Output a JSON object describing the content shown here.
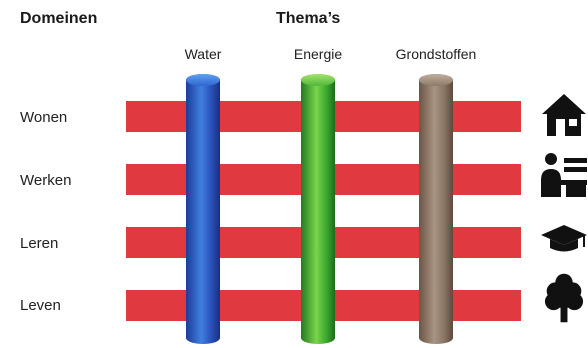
{
  "header": {
    "domains": "Domeinen",
    "themes": "Thema’s"
  },
  "themes": [
    {
      "label": "Water",
      "color": "#2f56c0"
    },
    {
      "label": "Energie",
      "color": "#3aa82f"
    },
    {
      "label": "Grondstoffen",
      "color": "#8a7462"
    }
  ],
  "domains": [
    {
      "label": "Wonen",
      "icon": "house-icon"
    },
    {
      "label": "Werken",
      "icon": "worker-desk-icon"
    },
    {
      "label": "Leren",
      "icon": "graduation-cap-icon"
    },
    {
      "label": "Leven",
      "icon": "tree-icon"
    }
  ],
  "colors": {
    "bar": "#e0393f",
    "icon": "#111111"
  }
}
